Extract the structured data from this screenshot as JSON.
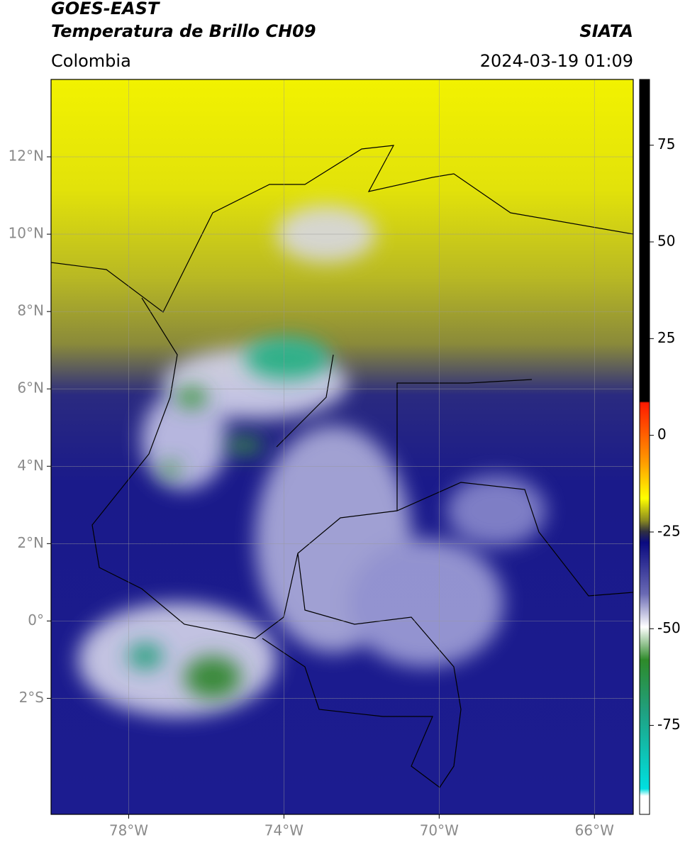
{
  "header": {
    "title": "GOES-EAST",
    "subtitle": "Temperatura de Brillo CH09",
    "region": "Colombia",
    "source": "SIATA",
    "datetime": "2024-03-19 01:09"
  },
  "map": {
    "xlim": [
      -80,
      -65
    ],
    "ylim": [
      -5,
      14
    ],
    "xticks": [
      {
        "value": -78,
        "label": "78°W"
      },
      {
        "value": -74,
        "label": "74°W"
      },
      {
        "value": -70,
        "label": "70°W"
      },
      {
        "value": -66,
        "label": "66°W"
      }
    ],
    "yticks": [
      {
        "value": 12,
        "label": "12°N"
      },
      {
        "value": 10,
        "label": "10°N"
      },
      {
        "value": 8,
        "label": "8°N"
      },
      {
        "value": 6,
        "label": "6°N"
      },
      {
        "value": 4,
        "label": "4°N"
      },
      {
        "value": 2,
        "label": "2°N"
      },
      {
        "value": 0,
        "label": "0°"
      },
      {
        "value": -2,
        "label": "2°S"
      }
    ],
    "grid": true
  },
  "colorbar": {
    "lim": [
      -98,
      92
    ],
    "ticks": [
      75,
      50,
      25,
      0,
      -25,
      -50,
      -75
    ]
  }
}
